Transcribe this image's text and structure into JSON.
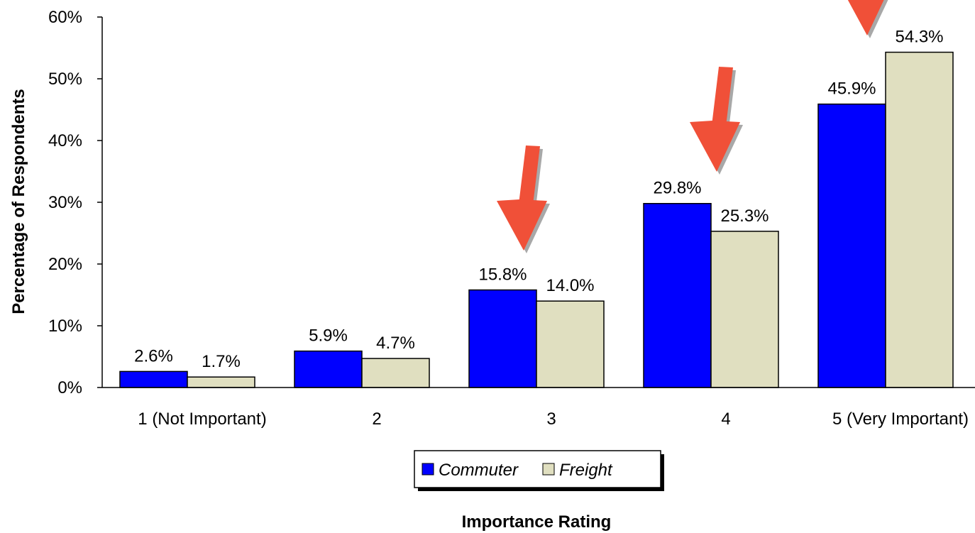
{
  "chart_data": {
    "type": "bar",
    "categories": [
      "1 (Not Important)",
      "2",
      "3",
      "4",
      "5 (Very Important)"
    ],
    "series": [
      {
        "name": "Commuter",
        "values": [
          2.6,
          5.9,
          15.8,
          29.8,
          45.9
        ],
        "labels": [
          "2.6%",
          "5.9%",
          "15.8%",
          "29.8%",
          "45.9%"
        ],
        "color": "#0000ff"
      },
      {
        "name": "Freight",
        "values": [
          1.7,
          4.7,
          14.0,
          25.3,
          54.3
        ],
        "labels": [
          "1.7%",
          "4.7%",
          "14.0%",
          "25.3%",
          "54.3%"
        ],
        "color": "#e0dfc0"
      }
    ],
    "xlabel": "Importance Rating",
    "ylabel": "Percentage of Respondents",
    "ylim": [
      0,
      60
    ],
    "yticks": [
      0,
      10,
      20,
      30,
      40,
      50,
      60
    ],
    "ytick_labels": [
      "0%",
      "10%",
      "20%",
      "30%",
      "40%",
      "50%",
      "60%"
    ],
    "grid": false,
    "legend_position": "bottom-center",
    "annotations": [
      {
        "type": "arrow",
        "points_to": "3",
        "color": "#f05038"
      },
      {
        "type": "arrow",
        "points_to": "4",
        "color": "#f05038"
      },
      {
        "type": "arrow",
        "points_to": "5 (Very Important)",
        "color": "#f05038"
      }
    ]
  }
}
